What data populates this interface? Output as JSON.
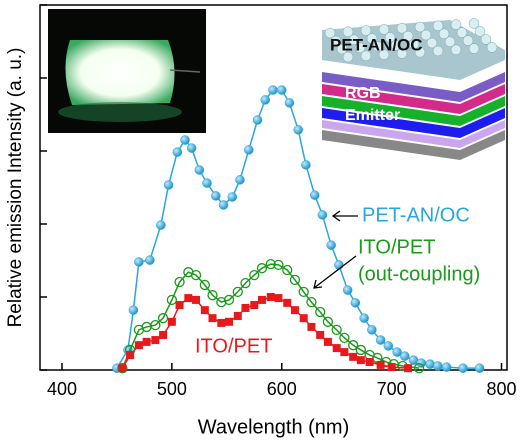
{
  "chart_data": {
    "type": "line",
    "xlabel": "Wavelength (nm)",
    "ylabel": "Relative emission Intensity (a. u.)",
    "xlim": [
      380,
      805
    ],
    "xticks": [
      400,
      500,
      600,
      700,
      800
    ],
    "ylim": [
      0,
      100
    ],
    "yticks": [
      0,
      20,
      40,
      60,
      80,
      100
    ],
    "annotations": [
      "PET-AN/OC",
      "ITO/PET",
      "(out-coupling)",
      "ITO/PET"
    ],
    "inset_labels": [
      "PET-AN/OC",
      "RGB",
      "Emitter"
    ],
    "series": [
      {
        "name": "PET-AN/OC",
        "color": "#29a6dc",
        "marker": "circle",
        "x": [
          450,
          460,
          465,
          470,
          480,
          490,
          497,
          505,
          512,
          518,
          525,
          532,
          540,
          547,
          555,
          562,
          570,
          578,
          585,
          592,
          600,
          607,
          615,
          622,
          630,
          637,
          645,
          652,
          660,
          667,
          675,
          682,
          690,
          697,
          705,
          712,
          720,
          727,
          735,
          742,
          750,
          765,
          780
        ],
        "values": [
          0.5,
          5.5,
          16.4,
          29.6,
          30.1,
          39.7,
          50.7,
          59.7,
          63.0,
          60.8,
          54.8,
          51.2,
          47.7,
          45.2,
          47.4,
          52.1,
          60.3,
          68.5,
          74.0,
          76.7,
          76.7,
          73.2,
          65.8,
          56.2,
          47.9,
          42.5,
          34.2,
          28.8,
          21.9,
          18.4,
          14.2,
          11.0,
          8.2,
          6.6,
          4.9,
          3.8,
          2.7,
          1.9,
          1.6,
          1.1,
          0.8,
          0.5,
          0.5
        ]
      },
      {
        "name": "ITO/PET (out-coupling)",
        "color": "#1a9a1a",
        "marker": "open-circle",
        "x": [
          455,
          462,
          470,
          477,
          485,
          492,
          500,
          507,
          515,
          522,
          530,
          537,
          545,
          552,
          560,
          567,
          575,
          582,
          590,
          597,
          605,
          612,
          620,
          627,
          635,
          642,
          650,
          657,
          665,
          672,
          680,
          687,
          695,
          702,
          710,
          725
        ],
        "values": [
          0.5,
          5.5,
          11.0,
          11.8,
          12.3,
          14.2,
          19.2,
          24.1,
          26.8,
          26.0,
          23.3,
          20.5,
          18.6,
          19.2,
          21.4,
          23.8,
          26.0,
          27.9,
          29.0,
          28.8,
          27.4,
          24.7,
          21.4,
          18.6,
          15.9,
          13.2,
          11.0,
          8.8,
          6.8,
          5.5,
          4.1,
          3.3,
          2.2,
          1.6,
          1.1,
          0.5
        ]
      },
      {
        "name": "ITO/PET",
        "color": "#e8191c",
        "marker": "square",
        "x": [
          455,
          462,
          470,
          477,
          485,
          492,
          500,
          507,
          515,
          522,
          530,
          537,
          545,
          552,
          560,
          567,
          575,
          582,
          590,
          597,
          605,
          612,
          620,
          627,
          635,
          642,
          650,
          657,
          665,
          672,
          680,
          690,
          700,
          715
        ],
        "values": [
          0.5,
          4.1,
          6.8,
          7.7,
          8.2,
          9.6,
          13.2,
          17.8,
          19.7,
          19.2,
          16.4,
          14.2,
          12.9,
          13.2,
          14.8,
          17.0,
          17.8,
          19.2,
          20.0,
          19.7,
          18.4,
          16.4,
          14.2,
          11.8,
          9.6,
          7.7,
          6.0,
          4.9,
          3.6,
          2.7,
          2.2,
          1.4,
          0.8,
          0.5
        ]
      }
    ]
  }
}
